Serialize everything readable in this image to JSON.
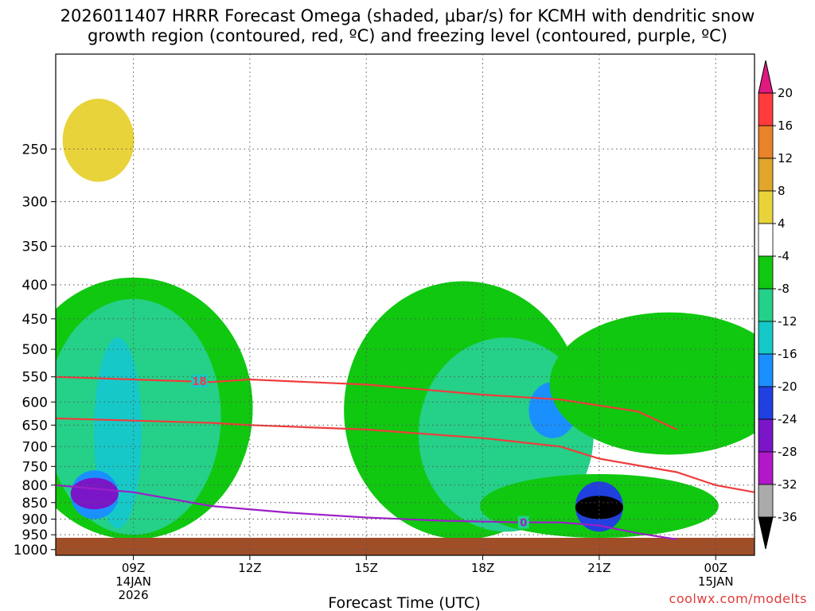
{
  "chart_data": {
    "type": "heatmap",
    "title_line1": "2026011407 HRRR Forecast Omega (shaded, μbar/s) for KCMH with dendritic snow",
    "title_line2": "growth region (contoured, red, ºC) and freezing level (contoured, purple, ºC)",
    "xlabel": "Forecast Time (UTC)",
    "ylabel": "Pressure (hPa)",
    "x_range_hours": [
      7,
      25
    ],
    "y_levels": [
      250,
      300,
      350,
      400,
      450,
      500,
      550,
      600,
      650,
      700,
      750,
      800,
      850,
      900,
      950,
      1000
    ],
    "y_tick_labels": [
      "250",
      "300",
      "350",
      "400",
      "450",
      "500",
      "550",
      "600",
      "650",
      "700",
      "750",
      "800",
      "850",
      "900",
      "950",
      "1000"
    ],
    "x_ticks": [
      {
        "hour": 9,
        "label": "09Z",
        "sub1": "14JAN",
        "sub2": "2026"
      },
      {
        "hour": 12,
        "label": "12Z",
        "sub1": "",
        "sub2": ""
      },
      {
        "hour": 15,
        "label": "15Z",
        "sub1": "",
        "sub2": ""
      },
      {
        "hour": 18,
        "label": "18Z",
        "sub1": "",
        "sub2": ""
      },
      {
        "hour": 21,
        "label": "21Z",
        "sub1": "",
        "sub2": ""
      },
      {
        "hour": 24,
        "label": "00Z",
        "sub1": "15JAN",
        "sub2": ""
      }
    ],
    "colorbar": {
      "tick_labels": [
        "20",
        "16",
        "12",
        "8",
        "4",
        "-4",
        "-8",
        "-12",
        "-16",
        "-20",
        "-24",
        "-28",
        "-32",
        "-36"
      ],
      "colors": [
        "#ff3b3b",
        "#e8832a",
        "#e0a62a",
        "#e8d43a",
        "#ffffff",
        "#10c810",
        "#25d088",
        "#17c8c8",
        "#1a90ff",
        "#2040e0",
        "#7a16c8",
        "#b018c8",
        "#aaaaaa",
        "#000000"
      ],
      "top_arrow_color": "#e01880",
      "bottom_arrow_color": "#000000"
    },
    "omega_regions": [
      {
        "bin": "4",
        "hour": 8.1,
        "p_top": 180,
        "p_bot": 310
      },
      {
        "bin": "8",
        "hour": 8.1,
        "p_top": 210,
        "p_bot": 280
      },
      {
        "bin": "-4",
        "hour": 9.0,
        "p_top": 390,
        "p_bot": 965
      },
      {
        "bin": "-8",
        "hour": 9.0,
        "p_top": 420,
        "p_bot": 950
      },
      {
        "bin": "-12",
        "hour": 8.6,
        "p_top": 480,
        "p_bot": 930
      },
      {
        "bin": "-16",
        "hour": 8.0,
        "p_top": 760,
        "p_bot": 900
      },
      {
        "bin": "-24",
        "hour": 8.0,
        "p_top": 780,
        "p_bot": 870
      },
      {
        "bin": "-4",
        "hour": 17.5,
        "p_top": 395,
        "p_bot": 965
      },
      {
        "bin": "-8",
        "hour": 18.6,
        "p_top": 480,
        "p_bot": 940
      },
      {
        "bin": "-16",
        "hour": 19.8,
        "p_top": 560,
        "p_bot": 680
      },
      {
        "bin": "-4",
        "hour": 21.0,
        "p_top": 770,
        "p_bot": 960
      },
      {
        "bin": "-20",
        "hour": 21.0,
        "p_top": 790,
        "p_bot": 940
      },
      {
        "bin": "-36",
        "hour": 21.0,
        "p_top": 830,
        "p_bot": 900
      },
      {
        "bin": "4",
        "hour": 21.8,
        "p_top": 350,
        "p_bot": 640
      },
      {
        "bin": "8",
        "hour": 21.0,
        "p_top": 470,
        "p_bot": 580
      },
      {
        "bin": "4",
        "hour": 22.9,
        "p_top": 260,
        "p_bot": 430
      },
      {
        "bin": "-4",
        "hour": 22.8,
        "p_top": 440,
        "p_bot": 720
      }
    ],
    "dgz_contours": [
      {
        "label": "18",
        "points": [
          [
            7,
            550
          ],
          [
            9,
            555
          ],
          [
            11,
            560
          ],
          [
            12,
            555
          ],
          [
            15,
            565
          ],
          [
            18,
            585
          ],
          [
            20,
            595
          ],
          [
            22,
            620
          ],
          [
            23,
            660
          ]
        ]
      },
      {
        "label": "",
        "points": [
          [
            7,
            635
          ],
          [
            9,
            640
          ],
          [
            11,
            645
          ],
          [
            12,
            650
          ],
          [
            15,
            660
          ],
          [
            18,
            680
          ],
          [
            20,
            700
          ],
          [
            21,
            730
          ],
          [
            23,
            765
          ],
          [
            24,
            800
          ],
          [
            25,
            820
          ]
        ]
      }
    ],
    "freezing_level": {
      "label": "0",
      "points": [
        [
          7,
          800
        ],
        [
          9,
          820
        ],
        [
          11,
          860
        ],
        [
          13,
          880
        ],
        [
          15,
          895
        ],
        [
          17,
          905
        ],
        [
          19,
          910
        ],
        [
          20,
          910
        ],
        [
          21,
          920
        ],
        [
          22,
          945
        ],
        [
          23,
          965
        ]
      ]
    },
    "ground_color": "#a04e28"
  },
  "credit": "coolwx.com/modelts"
}
